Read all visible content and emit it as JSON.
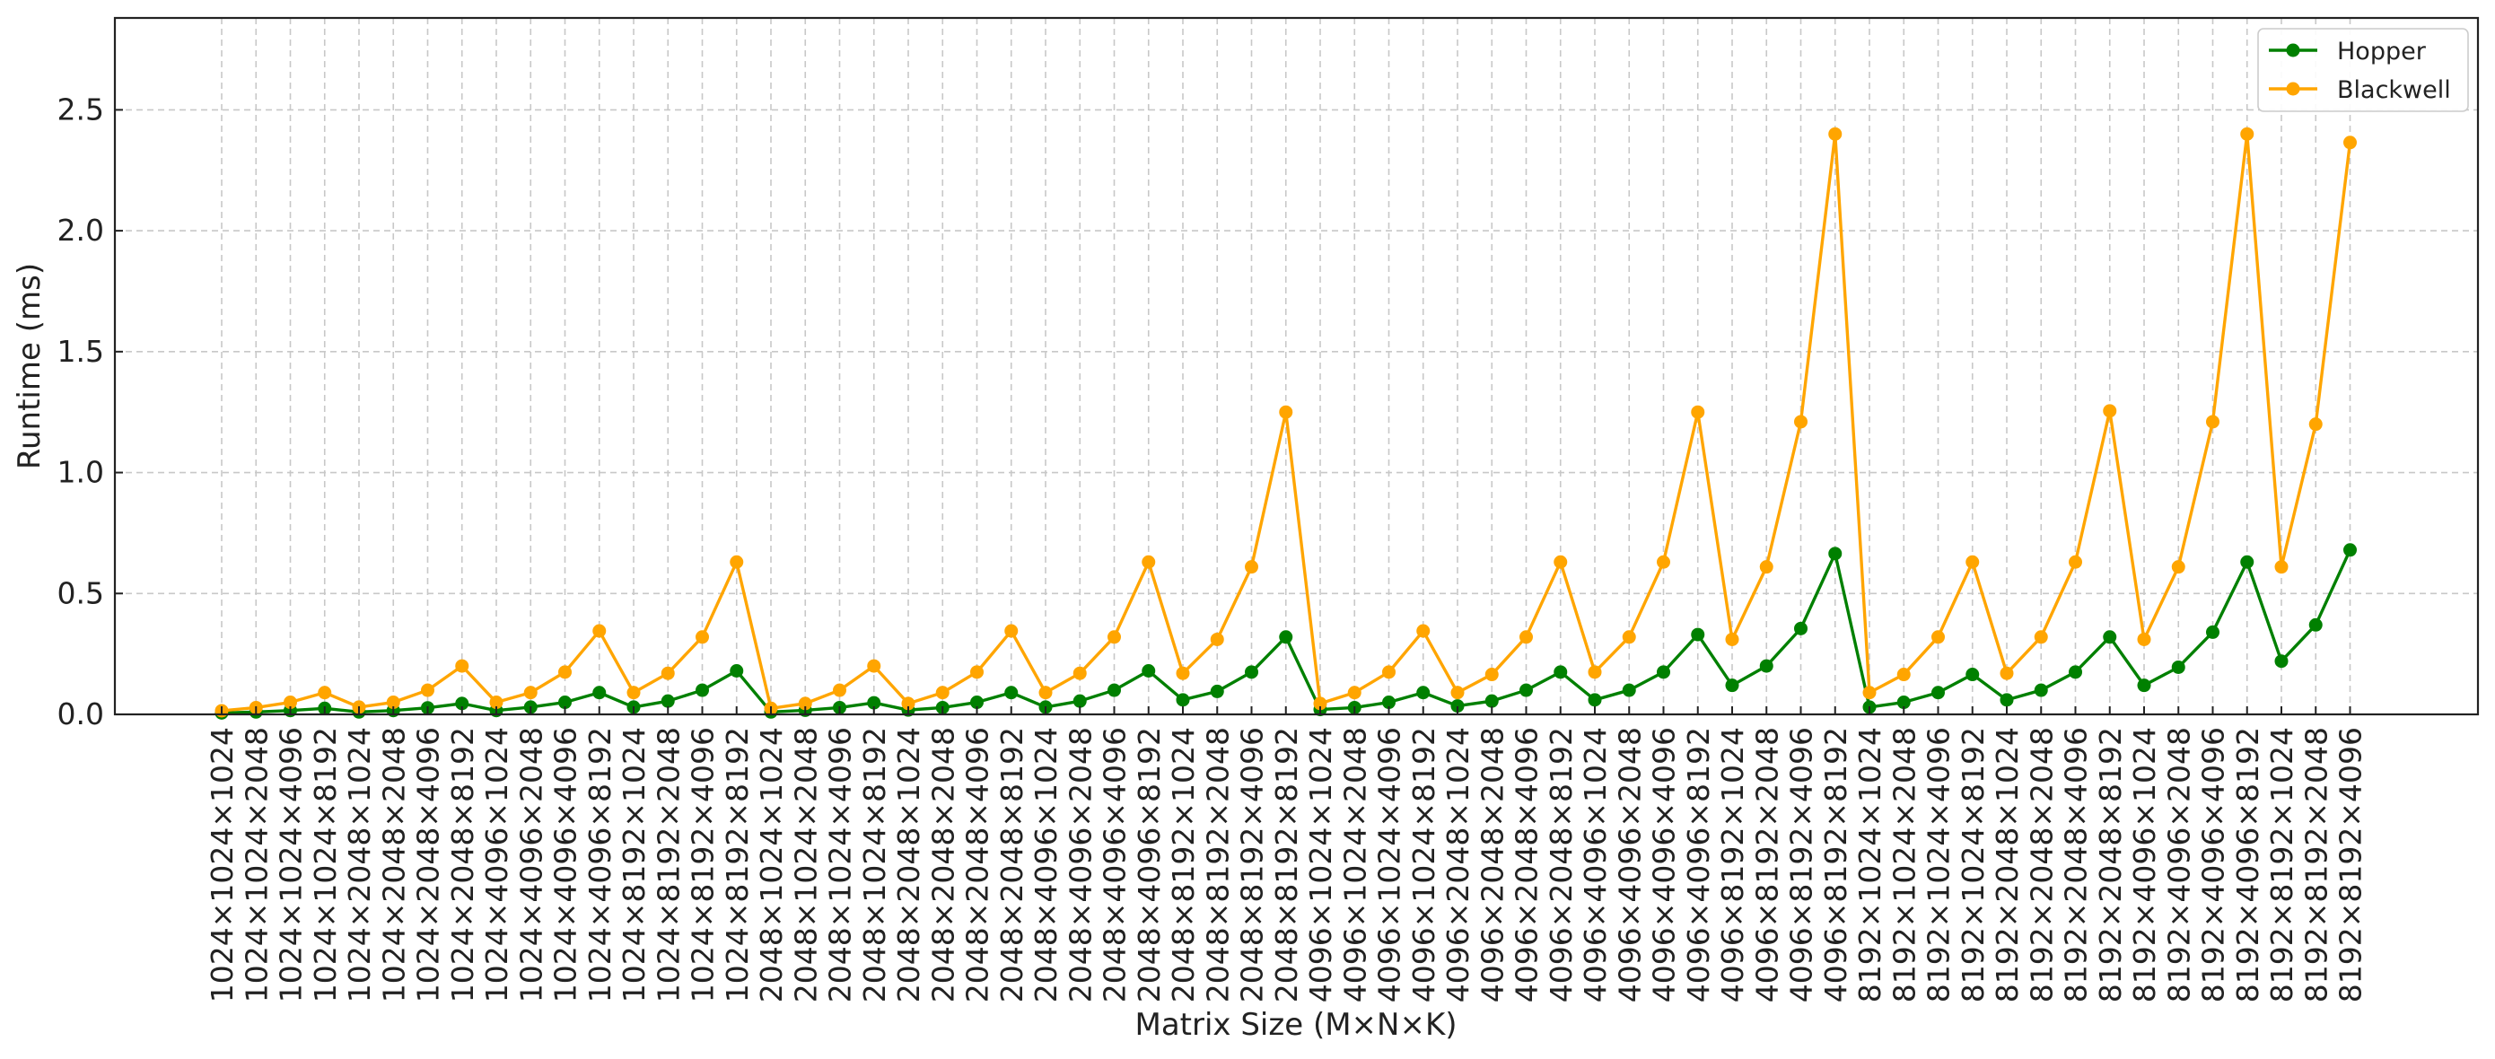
{
  "chart_data": {
    "type": "line",
    "xlabel": "Matrix Size (M×N×K)",
    "ylabel": "Runtime (ms)",
    "ylim": [
      0,
      2.88
    ],
    "yticks": [
      0.0,
      0.5,
      1.0,
      1.5,
      2.0,
      2.5
    ],
    "ytick_labels": [
      "0.0",
      "0.5",
      "1.0",
      "1.5",
      "2.0",
      "2.5"
    ],
    "grid": true,
    "legend_position": "top-right",
    "categories": [
      "1024×1024×1024",
      "1024×1024×2048",
      "1024×1024×4096",
      "1024×1024×8192",
      "1024×2048×1024",
      "1024×2048×2048",
      "1024×2048×4096",
      "1024×2048×8192",
      "1024×4096×1024",
      "1024×4096×2048",
      "1024×4096×4096",
      "1024×4096×8192",
      "1024×8192×1024",
      "1024×8192×2048",
      "1024×8192×4096",
      "1024×8192×8192",
      "2048×1024×1024",
      "2048×1024×2048",
      "2048×1024×4096",
      "2048×1024×8192",
      "2048×2048×1024",
      "2048×2048×2048",
      "2048×2048×4096",
      "2048×2048×8192",
      "2048×4096×1024",
      "2048×4096×2048",
      "2048×4096×4096",
      "2048×4096×8192",
      "2048×8192×1024",
      "2048×8192×2048",
      "2048×8192×4096",
      "2048×8192×8192",
      "4096×1024×1024",
      "4096×1024×2048",
      "4096×1024×4096",
      "4096×1024×8192",
      "4096×2048×1024",
      "4096×2048×2048",
      "4096×2048×4096",
      "4096×2048×8192",
      "4096×4096×1024",
      "4096×4096×2048",
      "4096×4096×4096",
      "4096×4096×8192",
      "4096×8192×1024",
      "4096×8192×2048",
      "4096×8192×4096",
      "4096×8192×8192",
      "8192×1024×1024",
      "8192×1024×2048",
      "8192×1024×4096",
      "8192×1024×8192",
      "8192×2048×1024",
      "8192×2048×2048",
      "8192×2048×4096",
      "8192×2048×8192",
      "8192×4096×1024",
      "8192×4096×2048",
      "8192×4096×4096",
      "8192×4096×8192",
      "8192×8192×1024",
      "8192×8192×2048",
      "8192×8192×4096"
    ],
    "series": [
      {
        "name": "Hopper",
        "color": "#008000",
        "values": [
          0.006,
          0.01,
          0.016,
          0.025,
          0.01,
          0.016,
          0.027,
          0.045,
          0.016,
          0.03,
          0.05,
          0.09,
          0.03,
          0.055,
          0.1,
          0.18,
          0.01,
          0.017,
          0.028,
          0.048,
          0.018,
          0.028,
          0.05,
          0.09,
          0.03,
          0.055,
          0.1,
          0.18,
          0.06,
          0.095,
          0.175,
          0.32,
          0.02,
          0.028,
          0.05,
          0.09,
          0.035,
          0.055,
          0.1,
          0.175,
          0.06,
          0.1,
          0.175,
          0.33,
          0.12,
          0.2,
          0.355,
          0.665,
          0.03,
          0.05,
          0.09,
          0.165,
          0.06,
          0.1,
          0.175,
          0.32,
          0.12,
          0.195,
          0.34,
          0.63,
          0.22,
          0.37,
          0.68
        ]
      },
      {
        "name": "Blackwell",
        "color": "#ffa500",
        "values": [
          0.015,
          0.028,
          0.05,
          0.09,
          0.03,
          0.05,
          0.1,
          0.2,
          0.05,
          0.09,
          0.175,
          0.345,
          0.09,
          0.17,
          0.32,
          0.63,
          0.025,
          0.045,
          0.1,
          0.2,
          0.045,
          0.09,
          0.175,
          0.345,
          0.09,
          0.17,
          0.32,
          0.63,
          0.17,
          0.31,
          0.61,
          1.25,
          0.045,
          0.09,
          0.175,
          0.345,
          0.09,
          0.165,
          0.32,
          0.63,
          0.175,
          0.32,
          0.63,
          1.25,
          0.31,
          0.61,
          1.21,
          2.4,
          0.09,
          0.165,
          0.32,
          0.63,
          0.17,
          0.32,
          0.63,
          1.255,
          0.31,
          0.61,
          1.21,
          2.4,
          0.61,
          1.2,
          2.365
        ]
      }
    ]
  }
}
